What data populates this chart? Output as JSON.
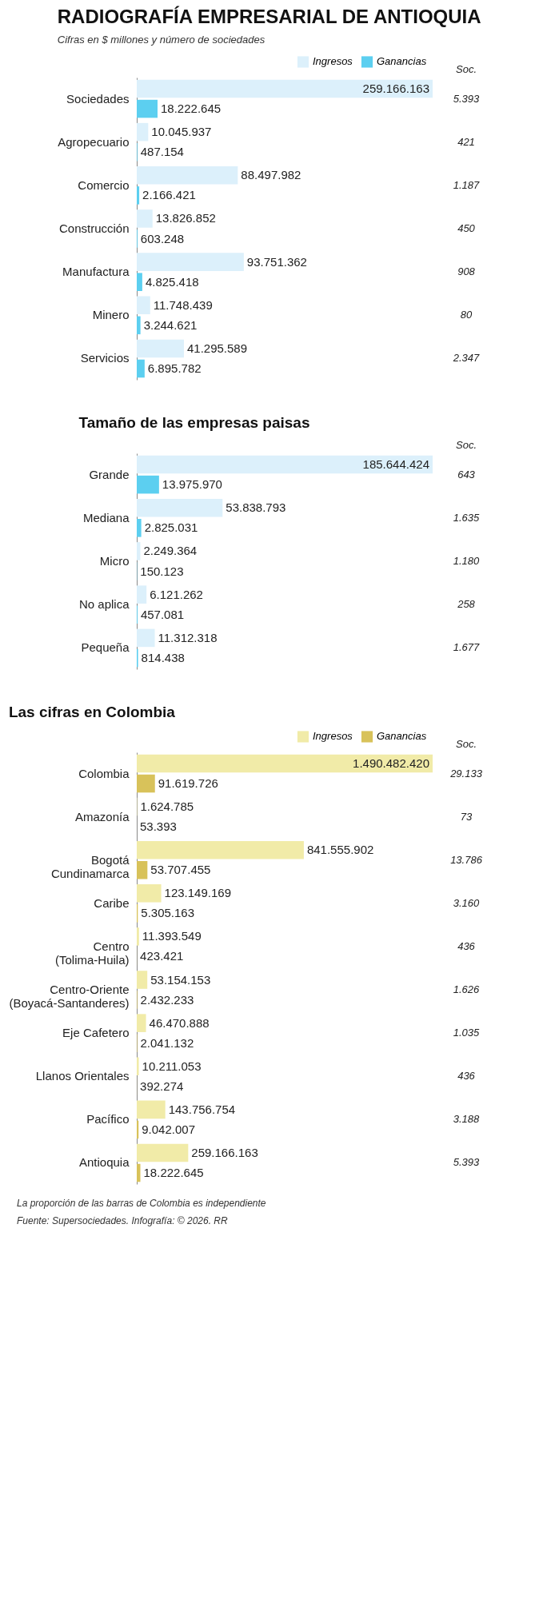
{
  "chart_data": [
    {
      "type": "bar",
      "orientation": "horizontal",
      "title": "RADIOGRAFÍA EMPRESARIAL DE ANTIOQUIA",
      "subtitle": "Cifras en $ millones y número de sociedades",
      "legend": "top right",
      "categories": [
        "Sociedades",
        "Agropecuario",
        "Comercio",
        "Construcción",
        "Manufactura",
        "Minero",
        "Servicios"
      ],
      "series": [
        {
          "name": "Ingresos",
          "color": "#dcf0fb",
          "values": [
            259166163,
            10045937,
            88497982,
            13826852,
            93751362,
            11748439,
            41295589
          ],
          "value_labels": [
            "259.166.163",
            "10.045.937",
            "88.497.982",
            "13.826.852",
            "93.751.362",
            "11.748.439",
            "41.295.589"
          ]
        },
        {
          "name": "Ganancias",
          "color": "#5ccff0",
          "values": [
            18222645,
            487154,
            2166421,
            603248,
            4825418,
            3244621,
            6895782
          ],
          "value_labels": [
            "18.222.645",
            "487.154",
            "2.166.421",
            "603.248",
            "4.825.418",
            "3.244.621",
            "6.895.782"
          ]
        }
      ],
      "annotations": [
        "Soc.",
        "5.393",
        "421",
        "1.187",
        "450",
        "908",
        "80",
        "2.347"
      ]
    },
    {
      "type": "bar",
      "orientation": "horizontal",
      "title": "Tamaño de las empresas paisas",
      "categories": [
        "Grande",
        "Mediana",
        "Micro",
        "No aplica",
        "Pequeña"
      ],
      "series": [
        {
          "color": "#dcf0fb",
          "values": [
            185644424,
            53838793,
            2249364,
            6121262,
            11312318
          ],
          "value_labels": [
            "185.644.424",
            "53.838.793",
            "2.249.364",
            "6.121.262",
            "11.312.318"
          ]
        },
        {
          "color": "#5ccff0",
          "values": [
            13975970,
            2825031,
            150123,
            457081,
            814438
          ],
          "value_labels": [
            "13.975.970",
            "2.825.031",
            "150.123",
            "457.081",
            "814.438"
          ]
        }
      ],
      "annotations": [
        "Soc.",
        "643",
        "1.635",
        "1.180",
        "258",
        "1.677"
      ]
    },
    {
      "type": "bar",
      "orientation": "horizontal",
      "title": "Las cifras en Colombia",
      "legend": "top right",
      "categories": [
        "Colombia",
        "Amazonía",
        "Bogotá\nCundinamarca",
        "Caribe",
        "Centro\n(Tolima-Huila)",
        "Centro-Oriente\n(Boyacá-Santanderes)",
        "Eje Cafetero",
        "Llanos Orientales",
        "Pacífico",
        "Antioquia"
      ],
      "series": [
        {
          "name": "Ingresos",
          "color": "#f1eba8",
          "values": [
            1490482420,
            1624785,
            841555902,
            123149169,
            11393549,
            53154153,
            46470888,
            10211053,
            143756754,
            259166163
          ],
          "value_labels": [
            "1.490.482.420",
            "1.624.785",
            "841.555.902",
            "123.149.169",
            "11.393.549",
            "53.154.153",
            "46.470.888",
            "10.211.053",
            "143.756.754",
            "259.166.163"
          ]
        },
        {
          "name": "Ganancias",
          "color": "#d8c25a",
          "values": [
            91619726,
            53393,
            53707455,
            5305163,
            423421,
            2432233,
            2041132,
            392274,
            9042007,
            18222645
          ],
          "value_labels": [
            "91.619.726",
            "53.393",
            "53.707.455",
            "5.305.163",
            "423.421",
            "2.432.233",
            "2.041.132",
            "392.274",
            "9.042.007",
            "18.222.645"
          ]
        }
      ],
      "annotations": [
        "Soc.",
        "29.133",
        "73",
        "13.786",
        "3.160",
        "436",
        "1.626",
        "1.035",
        "436",
        "3.188",
        "5.393",
        "La proporción de las barras de Colombia es independiente",
        "Fuente: Supersociedades. Infografía: © 2026. RR"
      ]
    }
  ]
}
